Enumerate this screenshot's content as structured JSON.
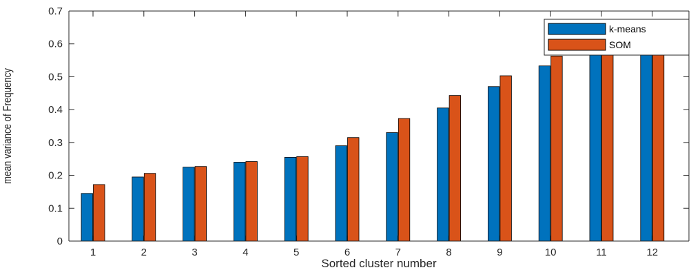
{
  "chart_data": {
    "type": "bar",
    "title": "",
    "xlabel": "Sorted cluster number",
    "ylabel": "mean variance of Frequency",
    "categories": [
      "1",
      "2",
      "3",
      "4",
      "5",
      "6",
      "7",
      "8",
      "9",
      "10",
      "11",
      "12"
    ],
    "series": [
      {
        "name": "k-means",
        "color": "#0072BD",
        "values": [
          0.145,
          0.195,
          0.225,
          0.24,
          0.255,
          0.29,
          0.33,
          0.405,
          0.47,
          0.533,
          0.585,
          0.625
        ]
      },
      {
        "name": "SOM",
        "color": "#D95319",
        "values": [
          0.172,
          0.206,
          0.227,
          0.242,
          0.257,
          0.315,
          0.373,
          0.443,
          0.503,
          0.563,
          0.612,
          0.67
        ]
      }
    ],
    "ylim": [
      0,
      0.7
    ],
    "yticks": [
      "0",
      "0.1",
      "0.2",
      "0.3",
      "0.4",
      "0.5",
      "0.6",
      "0.7"
    ],
    "grid": false,
    "legend_position": "top-right"
  }
}
